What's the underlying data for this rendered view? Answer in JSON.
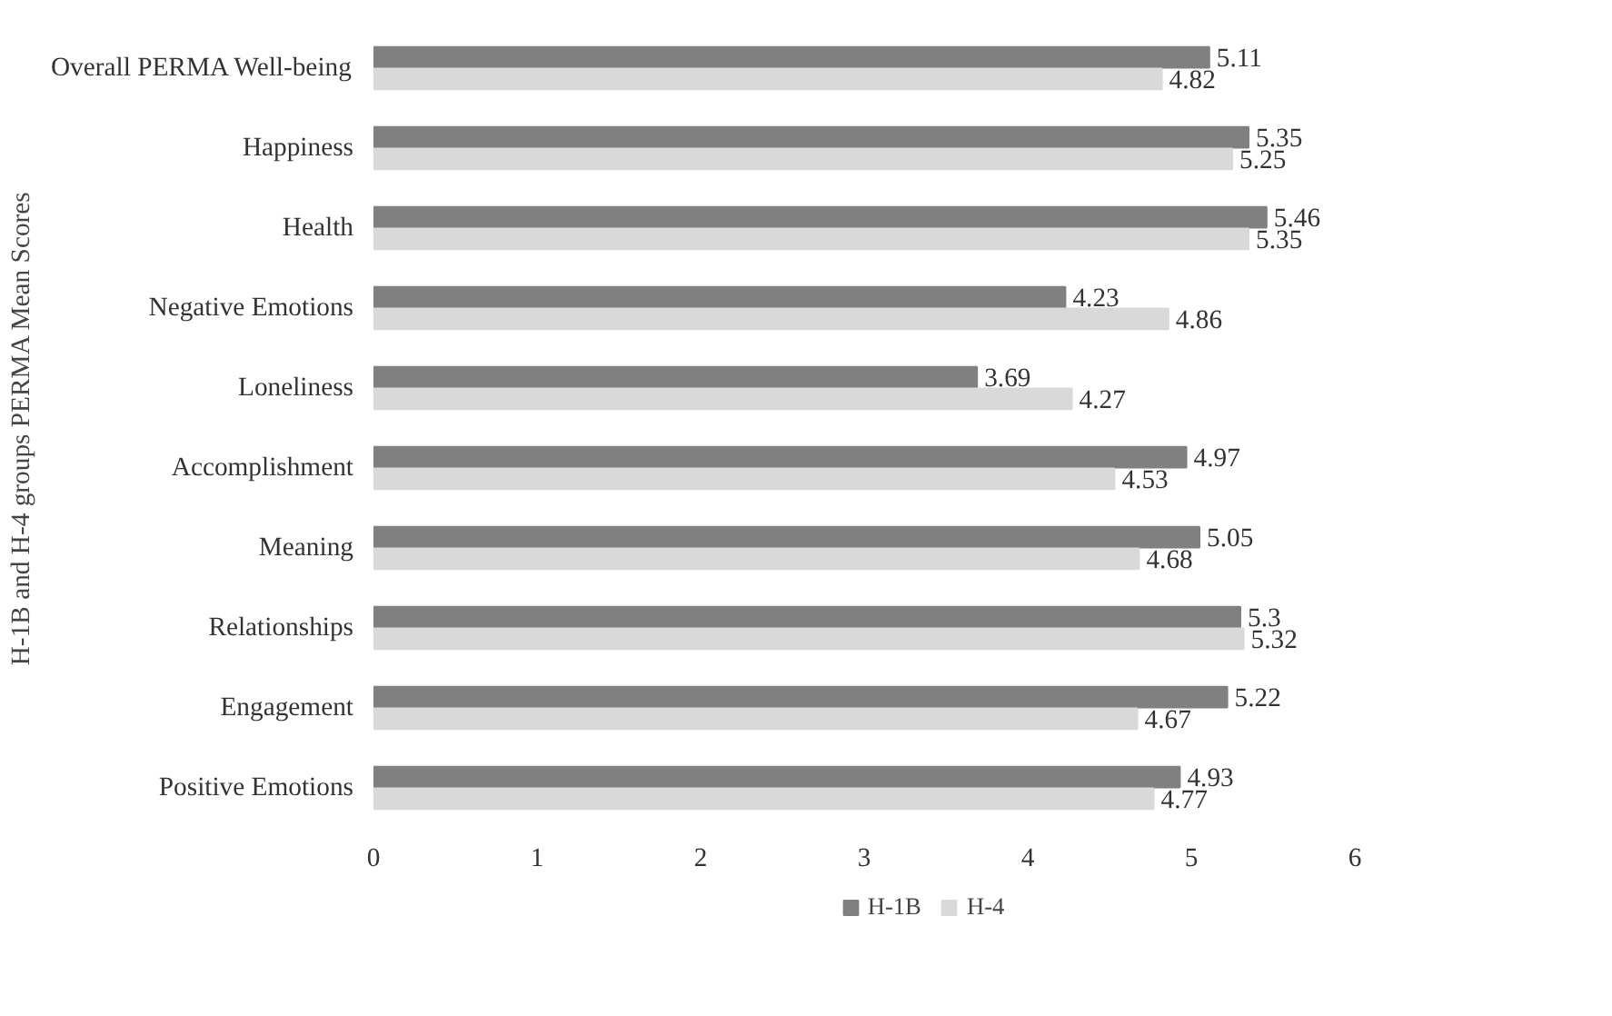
{
  "chart_data": {
    "type": "bar",
    "orientation": "horizontal",
    "ylabel": "H-1B and H-4 groups PERMA Mean Scores",
    "categories": [
      "Overall PERMA Well-being",
      "Happiness",
      "Health",
      "Negative Emotions",
      "Loneliness",
      "Accomplishment",
      "Meaning",
      "Relationships",
      "Engagement",
      "Positive Emotions"
    ],
    "series": [
      {
        "name": "H-1B",
        "color": "#808080",
        "values": [
          5.11,
          5.35,
          5.46,
          4.23,
          3.69,
          4.97,
          5.05,
          5.3,
          5.22,
          4.93
        ]
      },
      {
        "name": "H-4",
        "color": "#d9d9d9",
        "values": [
          4.82,
          5.25,
          5.35,
          4.86,
          4.27,
          4.53,
          4.68,
          5.32,
          4.67,
          4.77
        ]
      }
    ],
    "xlim": [
      0,
      6
    ],
    "xticks": [
      0,
      1,
      2,
      3,
      4,
      5,
      6
    ],
    "data_labels": true,
    "grid": false,
    "legend": "bottom"
  }
}
